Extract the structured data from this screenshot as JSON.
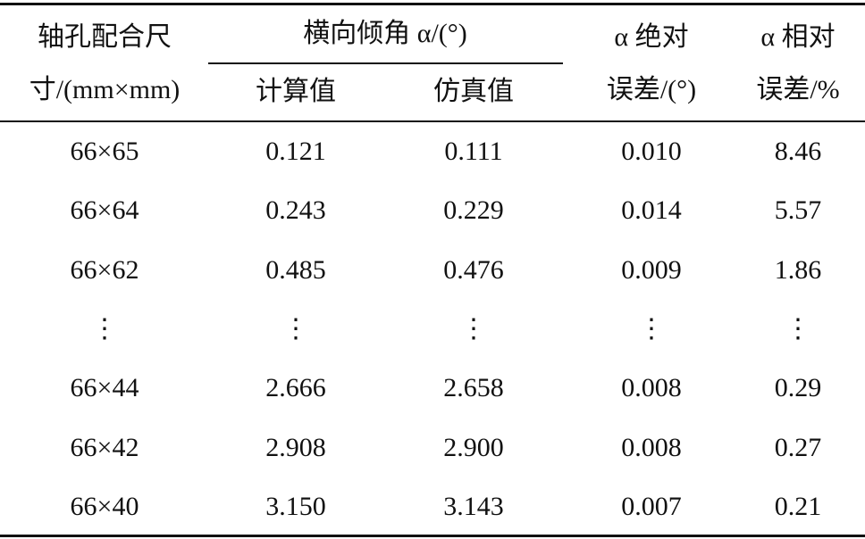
{
  "header": {
    "col1": [
      "轴孔配合尺",
      "寸/(mm×mm)"
    ],
    "group": "横向倾角 α/(°)",
    "sub": [
      "计算值",
      "仿真值"
    ],
    "col4": [
      "α 绝对",
      "误差/(°)"
    ],
    "col5": [
      "α 相对",
      "误差/%"
    ]
  },
  "table": {
    "rows": [
      [
        "66×65",
        "0.121",
        "0.111",
        "0.010",
        "8.46"
      ],
      [
        "66×64",
        "0.243",
        "0.229",
        "0.014",
        "5.57"
      ],
      [
        "66×62",
        "0.485",
        "0.476",
        "0.009",
        "1.86"
      ],
      [
        "⋮",
        "⋮",
        "⋮",
        "⋮",
        "⋮"
      ],
      [
        "66×44",
        "2.666",
        "2.658",
        "0.008",
        "0.29"
      ],
      [
        "66×42",
        "2.908",
        "2.900",
        "0.008",
        "0.27"
      ],
      [
        "66×40",
        "3.150",
        "3.143",
        "0.007",
        "0.21"
      ]
    ]
  }
}
